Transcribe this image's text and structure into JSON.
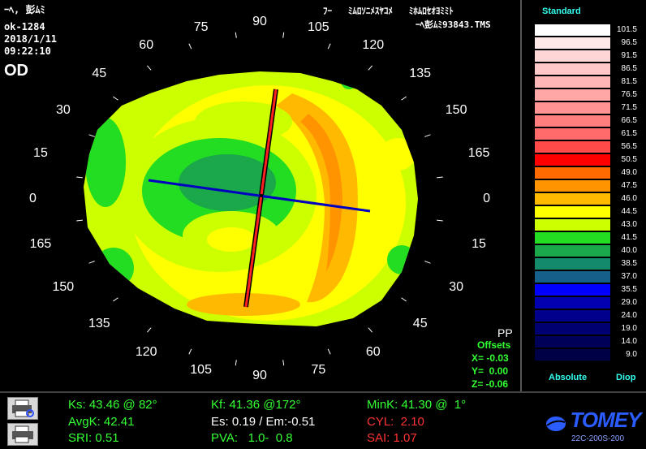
{
  "header": {
    "line1": "ｰﾍ, 彭ﾑﾐ",
    "id": "ok-1284",
    "date": "2018/1/11",
    "time": "09:22:10",
    "eye": "OD",
    "top_right_1": "ﾌｰ   ﾐﾑﾛｿﾆﾒｽﾔｺﾒ   ﾐﾎﾑﾛｾｵﾖﾐﾐﾄ",
    "top_right_2": "ｰﾍ彭ﾑﾐ93843.TMS"
  },
  "degree_labels": [
    "90",
    "105",
    "120",
    "135",
    "150",
    "165",
    "0",
    "15",
    "30",
    "45",
    "60",
    "75",
    "90",
    "105",
    "120",
    "135",
    "150",
    "165",
    "0",
    "15",
    "30",
    "45",
    "60",
    "75"
  ],
  "overlay": {
    "pp_label": "PP",
    "offsets_label": "Offsets",
    "x": "X= -0.03",
    "y": "Y=  0.00",
    "z": "Z= -0.06"
  },
  "scale": {
    "title": "Standard",
    "footer_left": "Absolute",
    "footer_right": "Diop",
    "steps": [
      {
        "value": "101.5",
        "color": "#ffffff"
      },
      {
        "value": "96.5",
        "color": "#ffe8e8"
      },
      {
        "value": "91.5",
        "color": "#ffd6d6"
      },
      {
        "value": "86.5",
        "color": "#ffc8c8"
      },
      {
        "value": "81.5",
        "color": "#ffb6b6"
      },
      {
        "value": "76.5",
        "color": "#ffa6a6"
      },
      {
        "value": "71.5",
        "color": "#ff9292"
      },
      {
        "value": "66.5",
        "color": "#ff7e7e"
      },
      {
        "value": "61.5",
        "color": "#ff6a6a"
      },
      {
        "value": "56.5",
        "color": "#ff4a4a"
      },
      {
        "value": "50.5",
        "color": "#ff0000"
      },
      {
        "value": "49.0",
        "color": "#ff6a00"
      },
      {
        "value": "47.5",
        "color": "#ff9400"
      },
      {
        "value": "46.0",
        "color": "#ffba00"
      },
      {
        "value": "44.5",
        "color": "#ffff00"
      },
      {
        "value": "43.0",
        "color": "#ccff00"
      },
      {
        "value": "41.5",
        "color": "#22dd22"
      },
      {
        "value": "40.0",
        "color": "#1aa84a"
      },
      {
        "value": "38.5",
        "color": "#138a6a"
      },
      {
        "value": "37.0",
        "color": "#15608a"
      },
      {
        "value": "35.5",
        "color": "#0000ff"
      },
      {
        "value": "29.0",
        "color": "#0000b0"
      },
      {
        "value": "24.0",
        "color": "#00008c"
      },
      {
        "value": "19.0",
        "color": "#000070"
      },
      {
        "value": "14.0",
        "color": "#000058"
      },
      {
        "value": "9.0",
        "color": "#000046"
      }
    ]
  },
  "stats": {
    "ks": "Ks: 43.46 @ 82°",
    "kf": "Kf: 41.36 @172°",
    "mink": "MinK: 41.30 @  1°",
    "avgk": "AvgK: 42.41",
    "es": "Es: 0.19 / Em:-0.51",
    "cyl": "CYL:  2.10",
    "sri": "SRI: 0.51",
    "pva": "PVA:   1.0-  0.8",
    "sai": "SAI: 1.07"
  },
  "brand": {
    "logo": "TOMEY",
    "model": "22C-200S-200"
  },
  "icons": {
    "print_preview": "printer-magnify-icon",
    "print": "printer-icon"
  }
}
